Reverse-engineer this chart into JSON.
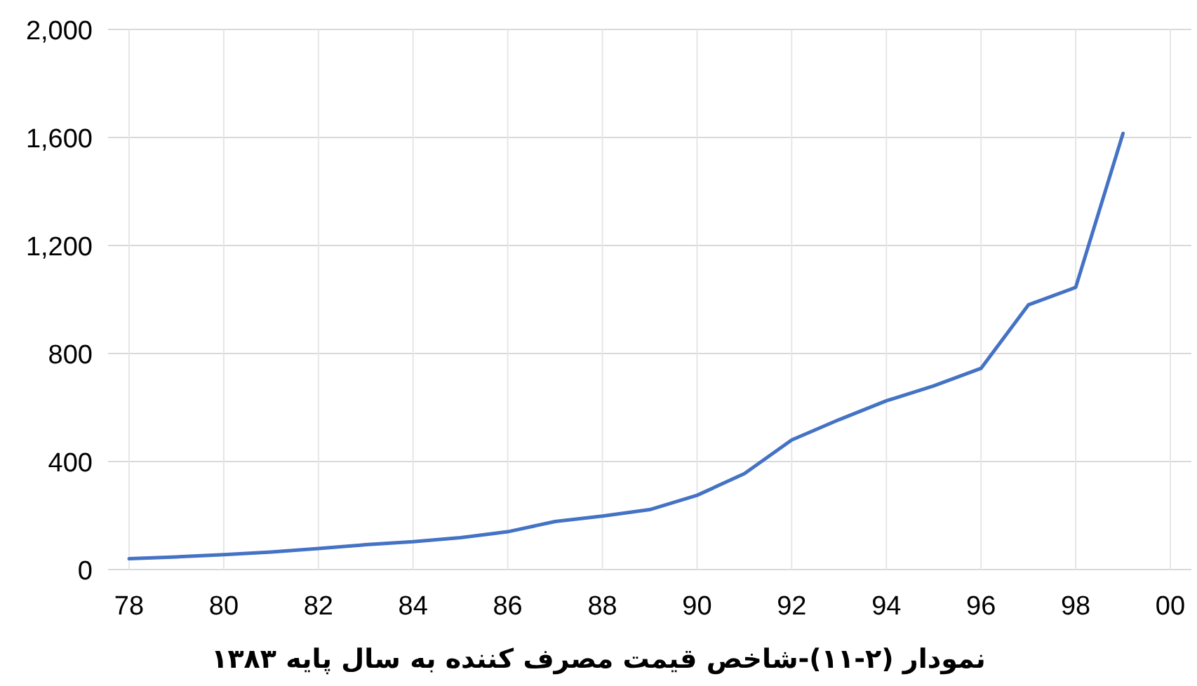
{
  "chart_data": {
    "type": "line",
    "title": "نمودار (۲-۱۱)-شاخص قیمت مصرف کننده به سال پایه ۱۳۸۳",
    "categories": [
      "78",
      null,
      "80",
      null,
      "82",
      null,
      "84",
      null,
      "86",
      null,
      "88",
      null,
      "90",
      null,
      "92",
      null,
      "94",
      null,
      "96",
      null,
      "98",
      null,
      "00"
    ],
    "series": [
      {
        "color": "#4472c4",
        "values": [
          40,
          47,
          55,
          65,
          78,
          92,
          103,
          118,
          140,
          178,
          198,
          222,
          275,
          355,
          480,
          555,
          625,
          680,
          745,
          980,
          1045,
          1615,
          null
        ]
      }
    ],
    "ylim": [
      0,
      2000
    ],
    "yticks": [
      {
        "value": 0,
        "label": "0"
      },
      {
        "value": 400,
        "label": "400"
      },
      {
        "value": 800,
        "label": "800"
      },
      {
        "value": 1200,
        "label": "1,200"
      },
      {
        "value": 1600,
        "label": "1,600"
      },
      {
        "value": 2000,
        "label": "2,000"
      }
    ],
    "grid": true
  }
}
